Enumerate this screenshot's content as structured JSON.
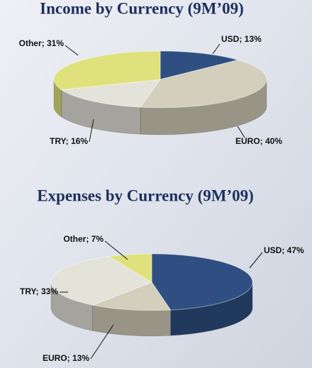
{
  "chart_data": [
    {
      "type": "pie",
      "title": "Income by Currency (9M’09)",
      "values": [
        13,
        40,
        16,
        31
      ],
      "value_labels": [
        "USD; 13%",
        "EURO; 40%",
        "TRY; 16%",
        "Other; 31%"
      ],
      "colors": [
        "#2f4f82",
        "#d3cfbc",
        "#e4e3da",
        "#dfe27c"
      ]
    },
    {
      "type": "pie",
      "title": "Expenses by Currency (9M’09)",
      "values": [
        47,
        13,
        33,
        7
      ],
      "value_labels": [
        "USD; 47%",
        "EURO; 13%",
        "TRY; 33%",
        "Other; 7%"
      ],
      "colors": [
        "#2f4f82",
        "#d3cfbc",
        "#e4e3da",
        "#dfe27c"
      ]
    }
  ]
}
